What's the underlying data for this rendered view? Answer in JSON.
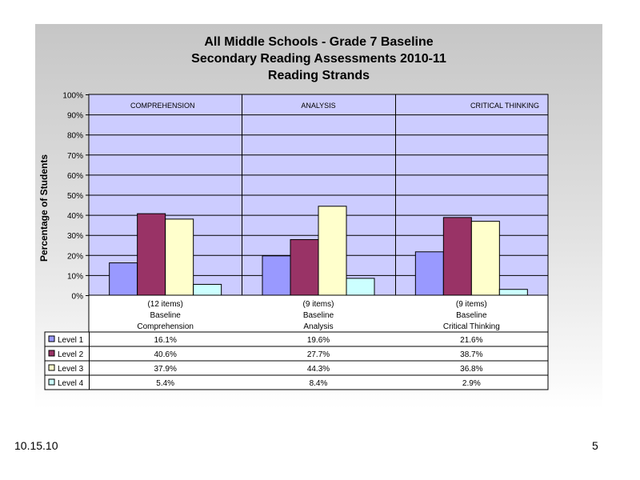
{
  "footer": {
    "date": "10.15.10",
    "page_number": "5"
  },
  "chart_data": {
    "type": "bar",
    "title": [
      "All Middle Schools - Grade 7 Baseline",
      "Secondary Reading Assessments 2010-11",
      "Reading Strands"
    ],
    "ylabel": "Percentage of Students",
    "ylim": [
      0,
      100
    ],
    "yticks": [
      "0%",
      "10%",
      "20%",
      "30%",
      "40%",
      "50%",
      "60%",
      "70%",
      "80%",
      "90%",
      "100%"
    ],
    "grid": true,
    "strand_labels": [
      "COMPREHENSION",
      "ANALYSIS",
      "CRITICAL THINKING"
    ],
    "categories": [
      [
        "(12 items)",
        "Baseline",
        "Comprehension"
      ],
      [
        "(9 items)",
        "Baseline",
        "Analysis"
      ],
      [
        "(9 items)",
        "Baseline",
        "Critical Thinking"
      ]
    ],
    "series": [
      {
        "name": "Level 1",
        "values": [
          16.1,
          19.6,
          21.6
        ],
        "labels": [
          "16.1%",
          "19.6%",
          "21.6%"
        ],
        "color": "#9999ff"
      },
      {
        "name": "Level 2",
        "values": [
          40.6,
          27.7,
          38.7
        ],
        "labels": [
          "40.6%",
          "27.7%",
          "38.7%"
        ],
        "color": "#993366"
      },
      {
        "name": "Level 3",
        "values": [
          37.9,
          44.3,
          36.8
        ],
        "labels": [
          "37.9%",
          "44.3%",
          "36.8%"
        ],
        "color": "#ffffcc"
      },
      {
        "name": "Level 4",
        "values": [
          5.4,
          8.4,
          2.9
        ],
        "labels": [
          "5.4%",
          "8.4%",
          "2.9%"
        ],
        "color": "#ccffff"
      }
    ],
    "plot_background": "#ccccff",
    "legend": "data-table"
  }
}
